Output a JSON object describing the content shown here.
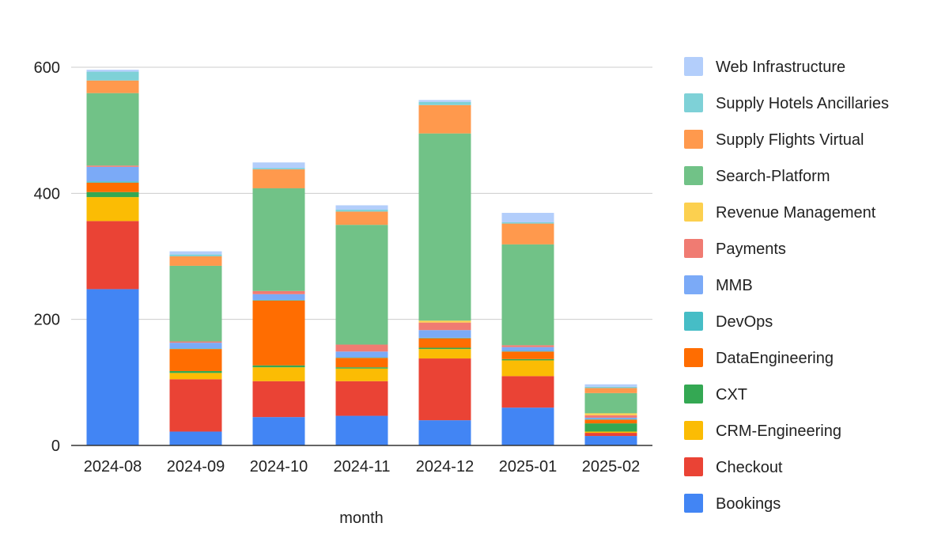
{
  "chart_data": {
    "type": "bar",
    "stacked": true,
    "xlabel": "month",
    "ylabel": "",
    "ylim": [
      0,
      600
    ],
    "yticks": [
      0,
      200,
      400,
      600
    ],
    "grid": true,
    "legend_position": "right",
    "categories": [
      "2024-08",
      "2024-09",
      "2024-10",
      "2024-11",
      "2024-12",
      "2025-01",
      "2025-02"
    ],
    "series": [
      {
        "name": "Bookings",
        "color": "#4285F4",
        "values": [
          248,
          22,
          45,
          47,
          40,
          60,
          15
        ]
      },
      {
        "name": "Checkout",
        "color": "#EA4335",
        "values": [
          108,
          83,
          57,
          55,
          98,
          50,
          5
        ]
      },
      {
        "name": "CRM-Engineering",
        "color": "#FBBC04",
        "values": [
          38,
          10,
          22,
          20,
          15,
          25,
          2
        ]
      },
      {
        "name": "CXT",
        "color": "#34A853",
        "values": [
          8,
          3,
          3,
          2,
          2,
          2,
          13
        ]
      },
      {
        "name": "DataEngineering",
        "color": "#FF6D01",
        "values": [
          15,
          35,
          103,
          15,
          15,
          12,
          6
        ]
      },
      {
        "name": "DevOps",
        "color": "#46BDC6",
        "values": [
          2,
          1,
          1,
          1,
          1,
          1,
          1
        ]
      },
      {
        "name": "MMB",
        "color": "#7BAAF7",
        "values": [
          23,
          9,
          9,
          9,
          12,
          6,
          2
        ]
      },
      {
        "name": "Payments",
        "color": "#F07B72",
        "values": [
          2,
          2,
          5,
          11,
          12,
          3,
          4
        ]
      },
      {
        "name": "Revenue Management",
        "color": "#FCD04F",
        "values": [
          0,
          0,
          0,
          0,
          3,
          0,
          3
        ]
      },
      {
        "name": "Search-Platform",
        "color": "#71C287",
        "values": [
          115,
          120,
          163,
          190,
          297,
          160,
          32
        ]
      },
      {
        "name": "Supply Flights Virtual",
        "color": "#FF994D",
        "values": [
          20,
          15,
          30,
          21,
          45,
          33,
          8
        ]
      },
      {
        "name": "Supply Hotels Ancillaries",
        "color": "#7ED1D7",
        "values": [
          14,
          3,
          2,
          3,
          5,
          2,
          2
        ]
      },
      {
        "name": "Web Infrastructure",
        "color": "#B3CEFB",
        "values": [
          3,
          5,
          9,
          7,
          3,
          15,
          4
        ]
      }
    ]
  }
}
